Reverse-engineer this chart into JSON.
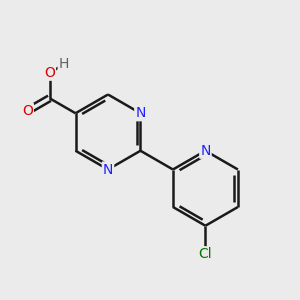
{
  "bg_color": "#ebebeb",
  "bond_color": "#1a1a1a",
  "N_color": "#2020ff",
  "O_color": "#dd0000",
  "H_color": "#606060",
  "Cl_color": "#007700",
  "bond_width": 1.8,
  "figsize": [
    3.0,
    3.0
  ],
  "dpi": 100,
  "xlim": [
    0,
    10
  ],
  "ylim": [
    0,
    10
  ]
}
